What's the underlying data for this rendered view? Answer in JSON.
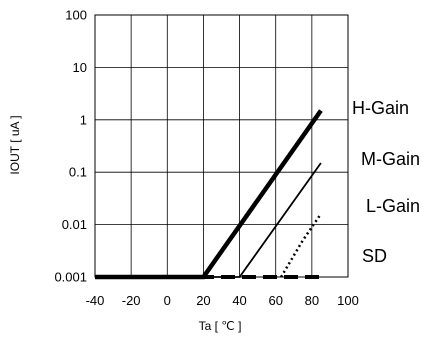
{
  "chart_data": {
    "type": "line",
    "title": "",
    "xlabel": "Ta [ ℃ ]",
    "ylabel": "IOUT [ uA ]",
    "xlim": [
      -40,
      100
    ],
    "ylim": [
      0.001,
      100
    ],
    "yscale": "log",
    "grid": true,
    "x_ticks": [
      "-40",
      "-20",
      "0",
      "20",
      "40",
      "60",
      "80",
      "100"
    ],
    "y_ticks": [
      "0.001",
      "0.01",
      "0.1",
      "1",
      "10",
      "100"
    ],
    "series": [
      {
        "name": "H-Gain",
        "style": "solid-thick",
        "x": [
          -40,
          20,
          85
        ],
        "y": [
          0.001,
          0.001,
          1.5
        ]
      },
      {
        "name": "M-Gain",
        "style": "solid",
        "x": [
          -40,
          40,
          85
        ],
        "y": [
          0.001,
          0.001,
          0.15
        ]
      },
      {
        "name": "L-Gain",
        "style": "dotted",
        "x": [
          63,
          75,
          85
        ],
        "y": [
          0.001,
          0.005,
          0.016
        ]
      },
      {
        "name": "SD",
        "style": "dashed-thick",
        "x": [
          -40,
          85
        ],
        "y": [
          0.001,
          0.001
        ]
      }
    ]
  }
}
